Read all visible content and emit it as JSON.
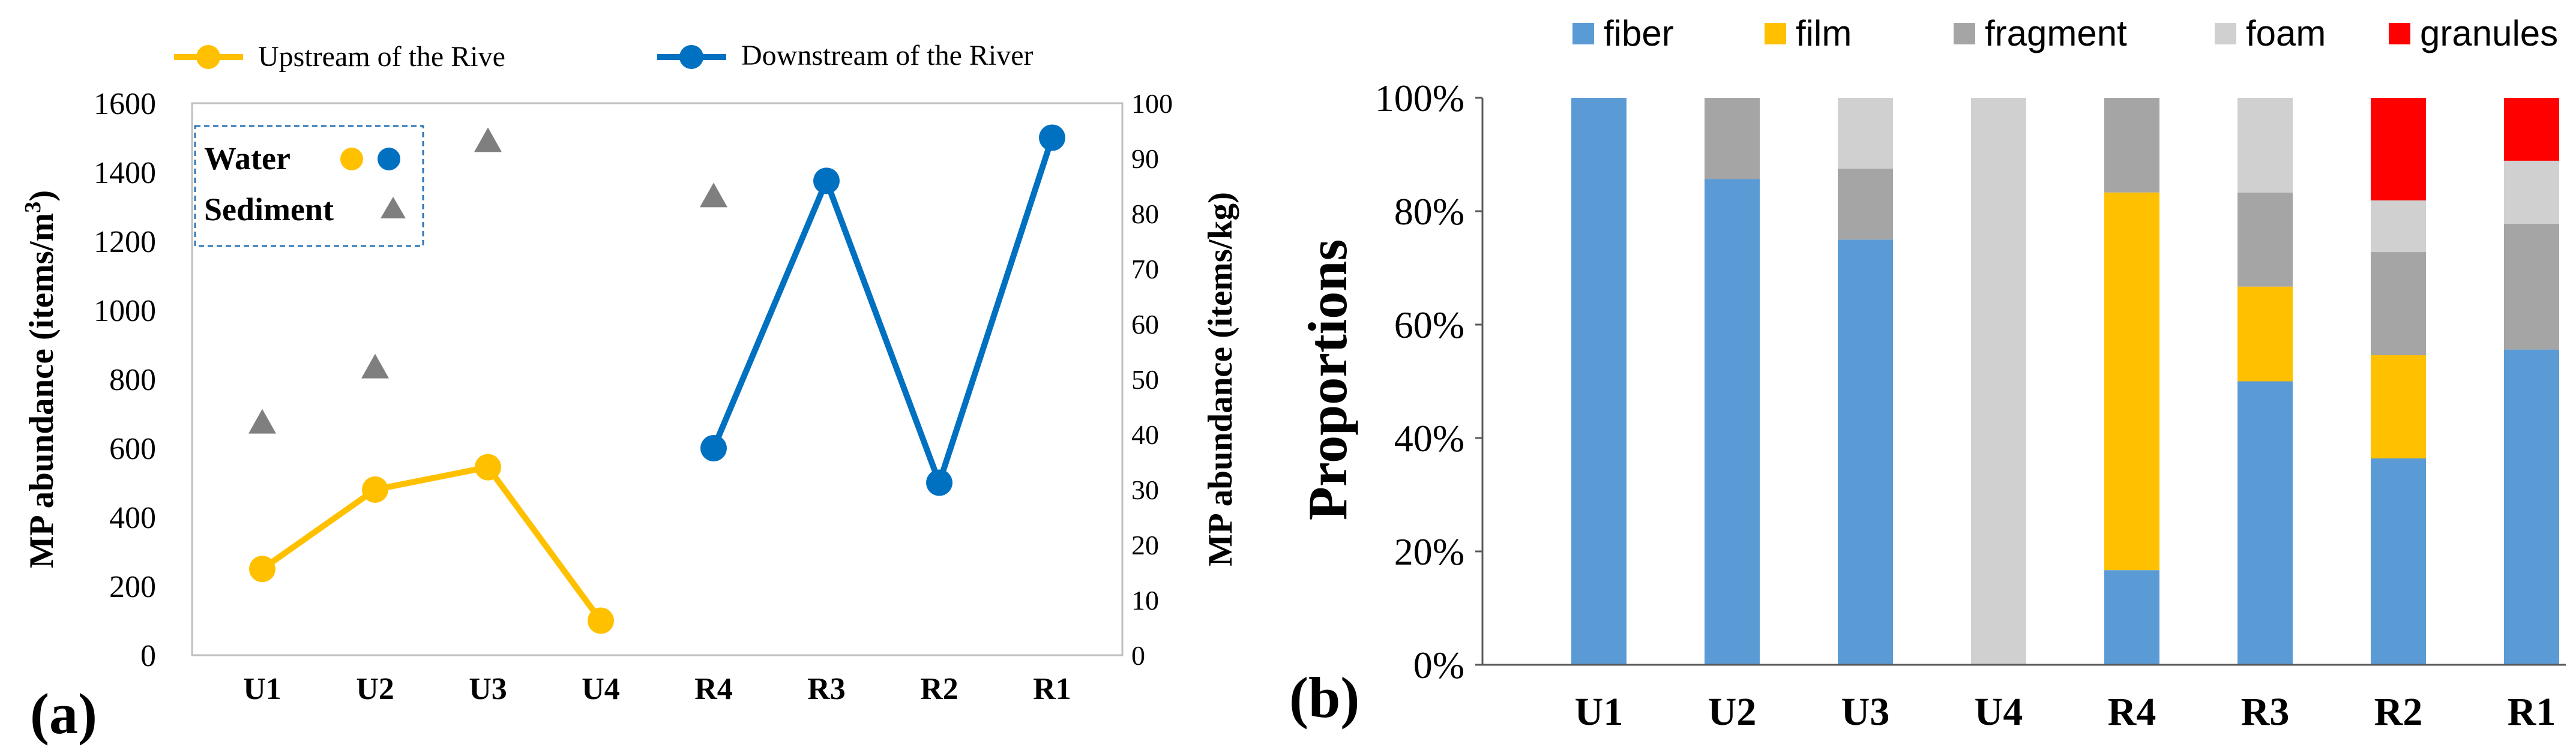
{
  "panel_a": {
    "label": "(a)",
    "legend_upstream": "Upstream of the Rive",
    "legend_downstream": "Downstream of  the River",
    "inset_water": "Water",
    "inset_sediment": "Sediment",
    "ylabel_left": "MP abundance (items/m",
    "ylabel_left_sup": "3",
    "ylabel_left_close": ")",
    "ylabel_right": "MP abundance (items/kg)"
  },
  "panel_b": {
    "label": "(b)",
    "ylabel": "Proportions"
  },
  "colors": {
    "upstream": "#FFC000",
    "downstream": "#0070C0",
    "sediment": "#7F7F7F",
    "fiber": "#5B9BD5",
    "film": "#FFC000",
    "fragment": "#A5A5A5",
    "foam": "#D0D0D0",
    "granules": "#FF0000",
    "axis": "#595959",
    "inset_border": "#2E75B6"
  },
  "chart_data": [
    {
      "type": "line",
      "categories": [
        "U1",
        "U2",
        "U3",
        "U4",
        "R4",
        "R3",
        "R2",
        "R1"
      ],
      "y_left_lim": [
        0,
        1600
      ],
      "y_left_ticks": [
        "0",
        "200",
        "400",
        "600",
        "800",
        "1000",
        "1200",
        "1400",
        "1600"
      ],
      "y_right_lim": [
        0,
        100
      ],
      "y_right_ticks": [
        "0",
        "10",
        "20",
        "30",
        "40",
        "50",
        "60",
        "70",
        "80",
        "90",
        "100"
      ],
      "grid": false,
      "legend_position": "top",
      "series": [
        {
          "name": "Upstream of the Rive",
          "axis": "left",
          "values": [
            250,
            480,
            545,
            100,
            null,
            null,
            null,
            null
          ]
        },
        {
          "name": "Downstream of  the River",
          "axis": "left",
          "values": [
            null,
            null,
            null,
            null,
            600,
            1375,
            500,
            1500
          ]
        },
        {
          "name": "Sediment",
          "axis": "right",
          "marker": "triangle",
          "values": [
            42,
            52,
            93,
            null,
            83,
            null,
            null,
            null
          ]
        }
      ]
    },
    {
      "type": "bar",
      "stacked": true,
      "percent": true,
      "categories": [
        "U1",
        "U2",
        "U3",
        "U4",
        "R4",
        "R3",
        "R2",
        "R1"
      ],
      "ylim": [
        0,
        100
      ],
      "y_ticks": [
        "0%",
        "20%",
        "40%",
        "60%",
        "80%",
        "100%"
      ],
      "grid": false,
      "legend_position": "top",
      "series": [
        {
          "name": "fiber",
          "values": [
            100,
            85.7,
            75,
            0,
            16.7,
            50,
            36.4,
            55.6
          ]
        },
        {
          "name": "film",
          "values": [
            0,
            0,
            0,
            0,
            66.6,
            16.7,
            18.2,
            0
          ]
        },
        {
          "name": "fragment",
          "values": [
            0,
            14.3,
            12.5,
            0,
            16.7,
            16.6,
            18.2,
            22.2
          ]
        },
        {
          "name": "foam",
          "values": [
            0,
            0,
            12.5,
            100,
            0,
            16.7,
            9.1,
            11.1
          ]
        },
        {
          "name": "granules",
          "values": [
            0,
            0,
            0,
            0,
            0,
            0,
            18.1,
            11.1
          ]
        }
      ]
    }
  ]
}
